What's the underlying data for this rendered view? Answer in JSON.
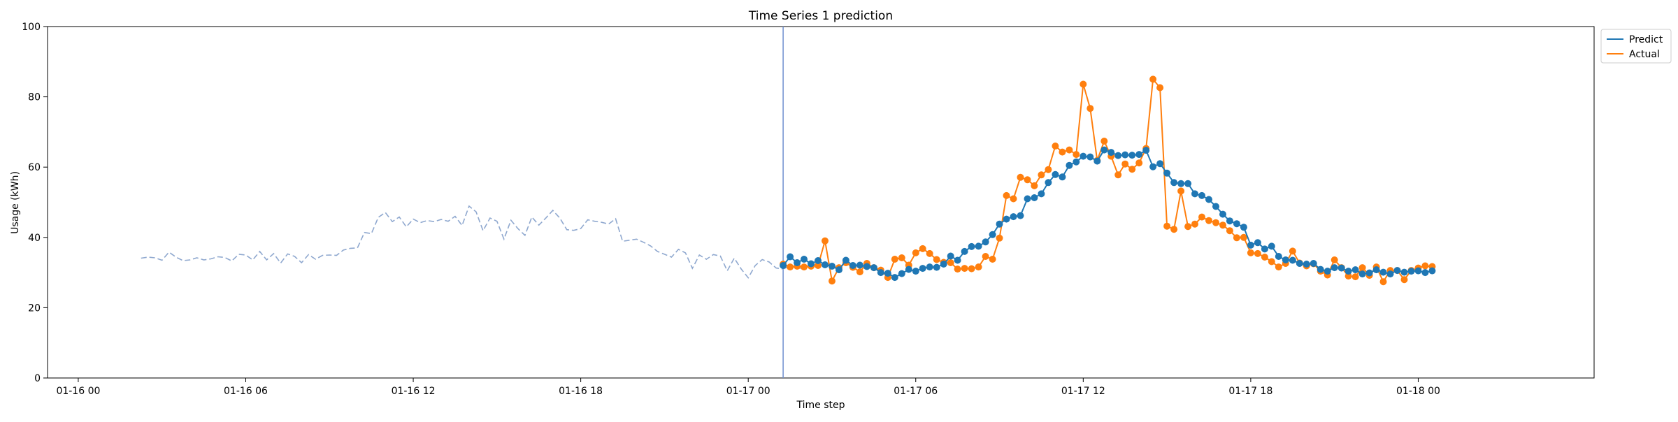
{
  "chart_data": {
    "type": "line",
    "title": "Time Series 1 prediction",
    "xlabel": "Time step",
    "ylabel": "Usage (kWh)",
    "ylim": [
      0,
      100
    ],
    "xlim": [
      "2024-01-15 22:54",
      "2024-01-18 06:18"
    ],
    "x_ticks": [
      {
        "x": "2024-01-16 00:00",
        "label": "01-16 00"
      },
      {
        "x": "2024-01-16 06:00",
        "label": "01-16 06"
      },
      {
        "x": "2024-01-16 12:00",
        "label": "01-16 12"
      },
      {
        "x": "2024-01-16 18:00",
        "label": "01-16 18"
      },
      {
        "x": "2024-01-17 00:00",
        "label": "01-17 00"
      },
      {
        "x": "2024-01-17 06:00",
        "label": "01-17 06"
      },
      {
        "x": "2024-01-17 12:00",
        "label": "01-17 12"
      },
      {
        "x": "2024-01-17 18:00",
        "label": "01-17 18"
      },
      {
        "x": "2024-01-18 00:00",
        "label": "01-18 00"
      }
    ],
    "y_ticks": [
      0,
      20,
      40,
      60,
      80,
      100
    ],
    "grid": false,
    "legend": {
      "placement": "upper-right-outside",
      "entries": [
        "Predict",
        "Actual"
      ]
    },
    "vline": {
      "x": "2024-01-17 01:15",
      "color": "#6f8fcf"
    },
    "history": {
      "style": "dashed",
      "color": "#8fa8cf",
      "start": "2024-01-16 02:15",
      "step_minutes": 15,
      "values": [
        34.1,
        34.4,
        34.2,
        33.5,
        35.8,
        34.4,
        33.4,
        33.6,
        34.2,
        33.6,
        33.9,
        34.5,
        34.3,
        33.3,
        35.2,
        35.0,
        33.6,
        36.0,
        33.6,
        35.4,
        32.7,
        35.3,
        34.6,
        32.8,
        35.1,
        33.8,
        34.9,
        35.0,
        34.9,
        36.4,
        36.9,
        37.0,
        41.4,
        41.1,
        45.7,
        47.1,
        44.5,
        45.8,
        43.0,
        45.2,
        44.2,
        44.8,
        44.5,
        45.1,
        44.6,
        46.0,
        43.4,
        48.9,
        47.3,
        41.9,
        45.5,
        44.6,
        39.5,
        44.9,
        42.5,
        40.6,
        45.8,
        43.5,
        45.5,
        47.7,
        45.5,
        42.2,
        42.0,
        42.5,
        45.0,
        44.6,
        44.3,
        43.8,
        45.3,
        38.9,
        39.2,
        39.5,
        38.6,
        37.6,
        36.0,
        35.2,
        34.4,
        36.6,
        35.6,
        31.2,
        35.0,
        33.8,
        35.1,
        34.7,
        30.5,
        34.1,
        31.0,
        28.5,
        32.0,
        33.7,
        33.0,
        31.3,
        31.0,
        31.9,
        31.2,
        31.3,
        32.5,
        31.9,
        32.7
      ]
    },
    "series": [
      {
        "name": "Predict",
        "color": "#1f77b4",
        "start": "2024-01-17 01:15",
        "step_minutes": 15,
        "values": [
          32.0,
          34.5,
          32.8,
          33.8,
          32.5,
          33.4,
          32.2,
          31.8,
          30.8,
          33.5,
          32.0,
          32.1,
          31.7,
          31.4,
          30.0,
          29.8,
          28.6,
          29.7,
          30.9,
          30.4,
          31.2,
          31.6,
          31.5,
          32.4,
          34.7,
          33.5,
          36.0,
          37.4,
          37.5,
          38.7,
          40.8,
          43.8,
          45.2,
          45.9,
          46.2,
          51.0,
          51.3,
          52.4,
          55.6,
          57.9,
          57.2,
          60.5,
          61.5,
          63.1,
          62.9,
          61.7,
          64.9,
          64.2,
          63.3,
          63.5,
          63.4,
          63.6,
          64.8,
          60.1,
          61.0,
          58.3,
          55.6,
          55.3,
          55.3,
          52.4,
          51.9,
          50.8,
          48.8,
          46.6,
          44.7,
          43.9,
          42.9,
          37.8,
          38.5,
          36.7,
          37.5,
          34.6,
          33.6,
          33.5,
          32.6,
          32.4,
          32.6,
          30.9,
          30.4,
          31.4,
          31.3,
          30.4,
          30.8,
          29.6,
          29.9,
          30.8,
          30.1,
          29.6,
          30.6,
          30.1,
          30.4,
          30.5,
          30.0,
          30.5
        ]
      },
      {
        "name": "Actual",
        "color": "#ff7f0e",
        "start": "2024-01-17 01:15",
        "step_minutes": 15,
        "values": [
          32.4,
          31.6,
          31.8,
          31.6,
          31.8,
          32.0,
          39.0,
          27.6,
          31.4,
          32.8,
          31.5,
          30.2,
          32.6,
          31.4,
          30.7,
          28.6,
          33.8,
          34.2,
          32.1,
          35.6,
          36.8,
          35.4,
          33.7,
          32.9,
          32.8,
          31.0,
          31.2,
          31.1,
          31.6,
          34.6,
          33.8,
          39.8,
          51.9,
          51.0,
          57.1,
          56.4,
          54.7,
          57.8,
          59.3,
          66.0,
          64.3,
          64.9,
          63.6,
          83.6,
          76.7,
          61.9,
          67.4,
          63.1,
          57.8,
          60.9,
          59.4,
          61.2,
          65.3,
          85.0,
          82.6,
          43.2,
          42.3,
          53.2,
          43.1,
          43.8,
          45.8,
          44.8,
          44.2,
          43.5,
          41.9,
          39.9,
          40.0,
          35.6,
          35.4,
          34.4,
          33.1,
          31.6,
          32.6,
          36.1,
          32.7,
          31.9,
          32.5,
          30.4,
          29.3,
          33.6,
          31.4,
          29.0,
          28.8,
          31.4,
          29.2,
          31.6,
          27.4,
          30.6,
          30.6,
          28.0,
          30.6,
          31.3,
          31.9,
          31.7
        ]
      }
    ]
  }
}
